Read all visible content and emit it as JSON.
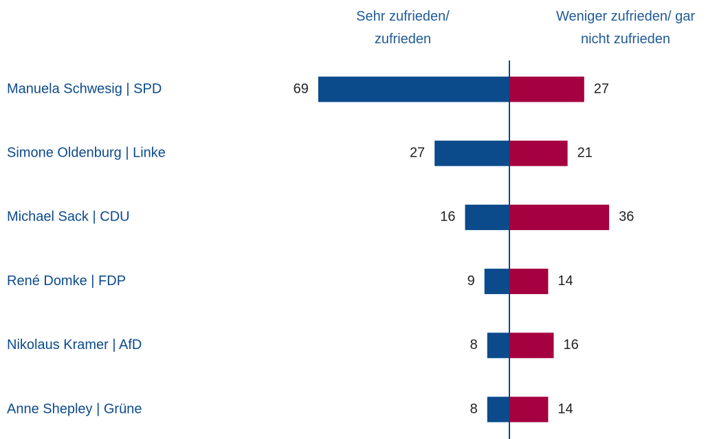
{
  "chart_data": {
    "type": "diverging-bar",
    "categories": [
      "Manuela Schwesig | SPD",
      "Simone Oldenburg | Linke",
      "Michael Sack | CDU",
      "René Domke | FDP",
      "Nikolaus Kramer | AfD",
      "Anne Shepley | Grüne"
    ],
    "series": [
      {
        "name": "Sehr zufrieden/ zufrieden",
        "color": "#0b4a8b",
        "values": [
          69,
          27,
          16,
          9,
          8,
          8
        ]
      },
      {
        "name": "Weniger zufrieden/ gar nicht zufrieden",
        "color": "#a5003f",
        "values": [
          27,
          21,
          36,
          14,
          16,
          14
        ]
      }
    ]
  }
}
